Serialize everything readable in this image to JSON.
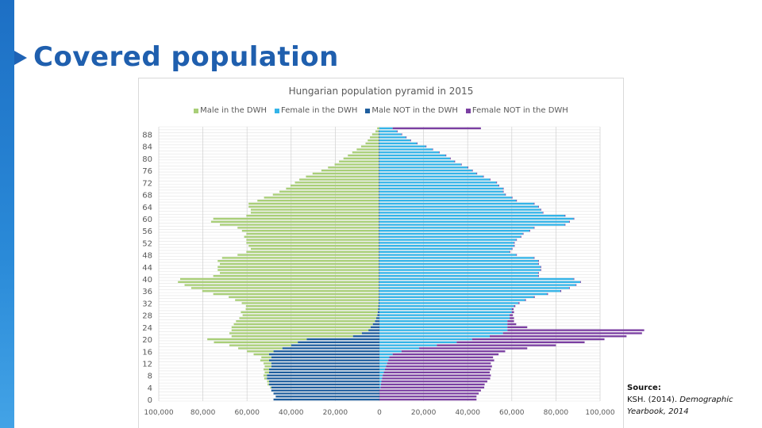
{
  "slide": {
    "title": "Covered population",
    "source_label": "Source:",
    "source_text_plain": "KSH. (2014).",
    "source_text_italic": "Demographic Yearbook, 2014"
  },
  "colors": {
    "sidebar": "#1d6fc4",
    "title": "#1f5fae",
    "male_dwh": "#a9cf78",
    "female_dwh": "#34b4e8",
    "male_not_dwh": "#1f5e9e",
    "female_not_dwh": "#7b3fa2"
  },
  "chart_data": {
    "type": "bar",
    "orientation": "horizontal",
    "title": "Hungarian population pyramid in 2015",
    "legend_position": "top",
    "grid": true,
    "series": [
      {
        "name": "Male in the DWH",
        "side": "left",
        "color": "#a9cf78"
      },
      {
        "name": "Female in the DWH",
        "side": "right",
        "color": "#34b4e8"
      },
      {
        "name": "Male NOT in the DWH",
        "side": "left",
        "color": "#1f5e9e"
      },
      {
        "name": "Female NOT in the DWH",
        "side": "right",
        "color": "#7b3fa2"
      }
    ],
    "y_ticks": [
      "88",
      "84",
      "80",
      "76",
      "72",
      "68",
      "64",
      "60",
      "56",
      "52",
      "48",
      "44",
      "40",
      "36",
      "32",
      "28",
      "24",
      "20",
      "16",
      "12",
      "8",
      "4",
      "0"
    ],
    "x_ticks": [
      "100,000",
      "80,000",
      "60,000",
      "40,000",
      "20,000",
      "0",
      "20,000",
      "40,000",
      "60,000",
      "80,000",
      "100,000"
    ],
    "xlim": [
      -100000,
      100000
    ],
    "ages": [
      0,
      1,
      2,
      3,
      4,
      5,
      6,
      7,
      8,
      9,
      10,
      11,
      12,
      13,
      14,
      15,
      16,
      17,
      18,
      19,
      20,
      21,
      22,
      23,
      24,
      25,
      26,
      27,
      28,
      29,
      30,
      31,
      32,
      33,
      34,
      35,
      36,
      37,
      38,
      39,
      40,
      41,
      42,
      43,
      44,
      45,
      46,
      47,
      48,
      49,
      50,
      51,
      52,
      53,
      54,
      55,
      56,
      57,
      58,
      59,
      60,
      61,
      62,
      63,
      64,
      65,
      66,
      67,
      68,
      69,
      70,
      71,
      72,
      73,
      74,
      75,
      76,
      77,
      78,
      79,
      80,
      81,
      82,
      83,
      84,
      85,
      86,
      87,
      88,
      89,
      90
    ],
    "male_in_dwh": [
      0,
      0,
      0,
      0,
      500,
      700,
      900,
      1200,
      1500,
      2000,
      2500,
      3000,
      3500,
      4000,
      4500,
      7000,
      12000,
      20000,
      28000,
      38000,
      45000,
      55000,
      60000,
      62000,
      63000,
      63000,
      63000,
      62000,
      61000,
      62000,
      60000,
      60000,
      62000,
      65000,
      68000,
      75000,
      80000,
      85000,
      88000,
      91000,
      90000,
      75000,
      72000,
      73000,
      73000,
      72000,
      73000,
      71000,
      64000,
      60000,
      58000,
      59000,
      60000,
      60000,
      61000,
      60000,
      62000,
      64000,
      72000,
      76000,
      75000,
      60000,
      58000,
      58000,
      59000,
      59000,
      55000,
      52000,
      48000,
      45000,
      42000,
      40000,
      38000,
      36000,
      33000,
      30000,
      26000,
      23000,
      20000,
      18000,
      16000,
      14000,
      12000,
      10000,
      8000,
      6000,
      5000,
      4000,
      3000,
      1500,
      1000
    ],
    "male_not_dwh": [
      48000,
      47000,
      48000,
      49000,
      49000,
      50000,
      50000,
      51000,
      51000,
      50000,
      50000,
      49000,
      49000,
      50000,
      49000,
      50000,
      48000,
      44000,
      40000,
      37000,
      33000,
      12000,
      8000,
      5000,
      4000,
      3000,
      2000,
      1500,
      1000,
      800,
      600,
      500,
      400,
      400,
      300,
      300,
      300,
      300,
      300,
      300,
      300,
      300,
      300,
      300,
      300,
      300,
      300,
      300,
      300,
      300,
      300,
      300,
      300,
      300,
      300,
      300,
      300,
      300,
      300,
      300,
      300,
      300,
      300,
      300,
      300,
      300,
      300,
      300,
      300,
      300,
      300,
      300,
      300,
      300,
      300,
      300,
      300,
      300,
      300,
      300,
      300,
      300,
      300,
      300,
      300,
      300,
      300,
      300,
      300,
      300,
      0
    ],
    "female_in_dwh": [
      0,
      0,
      0,
      0,
      500,
      700,
      900,
      1200,
      1500,
      2000,
      2500,
      3000,
      3500,
      4000,
      4500,
      6000,
      10000,
      18000,
      26000,
      35000,
      42000,
      50000,
      56000,
      58000,
      58000,
      58000,
      58000,
      59000,
      59000,
      60000,
      60000,
      61000,
      63000,
      66000,
      70000,
      76000,
      82000,
      86000,
      89000,
      91000,
      88000,
      72000,
      72000,
      73000,
      73000,
      72000,
      72000,
      70000,
      62000,
      59000,
      60000,
      61000,
      61000,
      62000,
      64000,
      65000,
      68000,
      70000,
      84000,
      86000,
      88000,
      84000,
      74000,
      73000,
      72000,
      70000,
      62000,
      60000,
      57000,
      56000,
      56000,
      54000,
      53000,
      50000,
      47000,
      44000,
      42000,
      40000,
      37000,
      34000,
      32000,
      30000,
      27000,
      24000,
      21000,
      17000,
      14000,
      12000,
      10000,
      8000,
      6000
    ],
    "female_not_dwh": [
      44000,
      44000,
      45000,
      46000,
      47000,
      47000,
      48000,
      49000,
      49000,
      48000,
      48000,
      48000,
      47000,
      48000,
      47000,
      48000,
      47000,
      49000,
      54000,
      58000,
      60000,
      62000,
      63000,
      62000,
      9000,
      4000,
      3000,
      2000,
      1500,
      1000,
      800,
      600,
      500,
      400,
      400,
      400,
      400,
      300,
      300,
      300,
      300,
      300,
      300,
      300,
      300,
      300,
      300,
      300,
      300,
      300,
      300,
      300,
      300,
      300,
      300,
      300,
      300,
      300,
      300,
      300,
      300,
      300,
      300,
      300,
      300,
      300,
      300,
      300,
      300,
      300,
      300,
      300,
      300,
      300,
      300,
      300,
      300,
      300,
      300,
      300,
      300,
      300,
      300,
      300,
      300,
      300,
      300,
      300,
      300,
      300,
      40000
    ]
  }
}
